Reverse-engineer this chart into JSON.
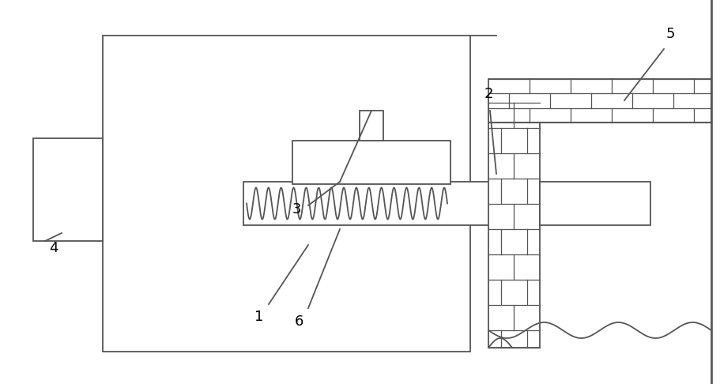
{
  "bg_color": "#ffffff",
  "line_color": "#555555",
  "lw": 1.3,
  "label_fontsize": 13,
  "fig_w": 9.12,
  "fig_h": 4.86,
  "dpi": 100
}
